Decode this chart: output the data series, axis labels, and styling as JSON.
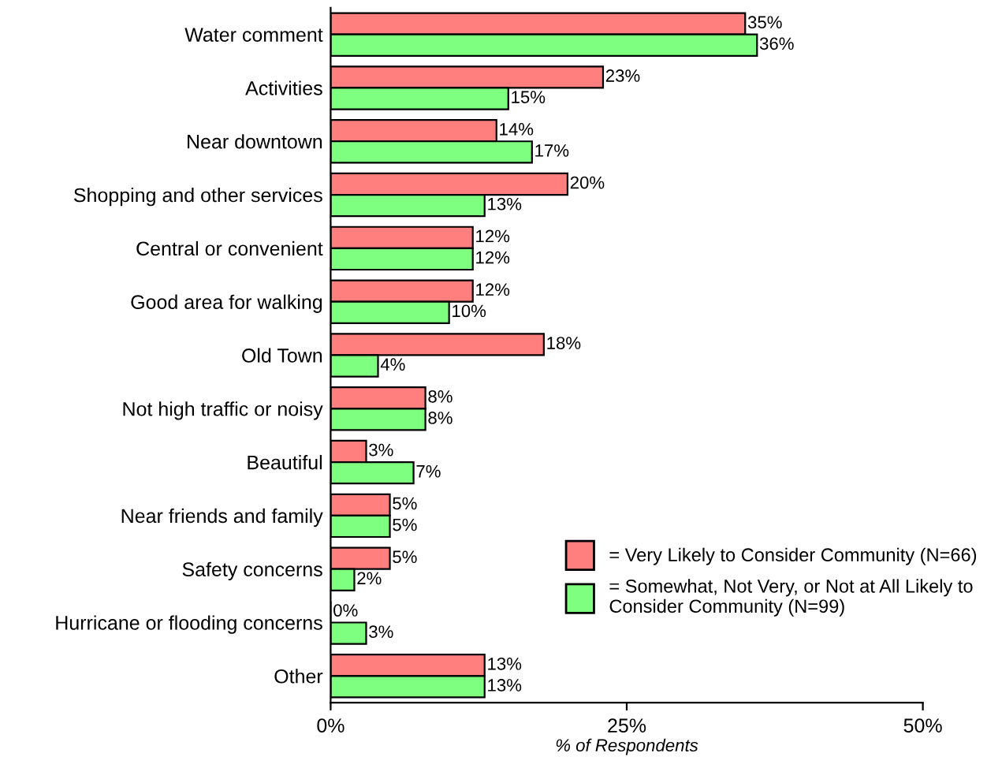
{
  "chart_data": {
    "type": "bar",
    "orientation": "horizontal",
    "xlabel": "% of Respondents",
    "categories": [
      "Water comment",
      "Activities",
      "Near downtown",
      "Shopping and other services",
      "Central or convenient",
      "Good area for walking",
      "Old Town",
      "Not high traffic or noisy",
      "Beautiful",
      "Near friends and family",
      "Safety concerns",
      "Hurricane or flooding concerns",
      "Other"
    ],
    "series": [
      {
        "name": "= Very Likely to Consider Community (N=66)",
        "color": "#ff7f7f",
        "values": [
          35,
          23,
          14,
          20,
          12,
          12,
          18,
          8,
          3,
          5,
          5,
          0,
          13
        ],
        "value_labels": [
          "35%",
          "23%",
          "14%",
          "20%",
          "12%",
          "12%",
          "18%",
          "8%",
          "3%",
          "5%",
          "5%",
          "0%",
          "13%"
        ]
      },
      {
        "name": "= Somewhat, Not Very, or Not at All Likely to\nConsider Community (N=99)",
        "color": "#7fff7f",
        "values": [
          36,
          15,
          17,
          13,
          12,
          10,
          4,
          8,
          7,
          5,
          2,
          3,
          13
        ],
        "value_labels": [
          "36%",
          "15%",
          "17%",
          "13%",
          "12%",
          "10%",
          "4%",
          "8%",
          "7%",
          "5%",
          "2%",
          "3%",
          "13%"
        ]
      }
    ],
    "xlim": [
      0,
      50
    ],
    "xticks": [
      {
        "value": 0,
        "label": "0%"
      },
      {
        "value": 25,
        "label": "25%"
      },
      {
        "value": 50,
        "label": "50%"
      }
    ],
    "grid": false,
    "legend": "lower right"
  }
}
